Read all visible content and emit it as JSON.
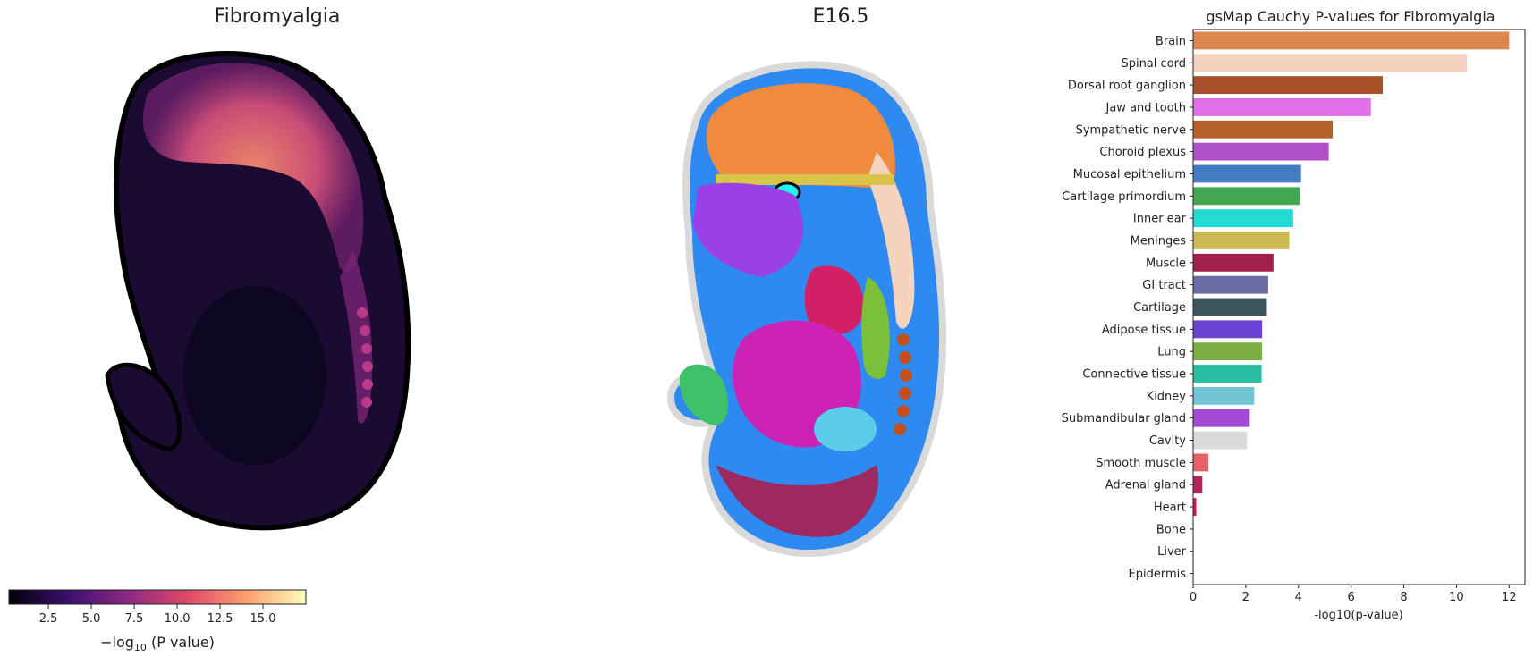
{
  "panels": {
    "left_title": "Fibromyalgia",
    "middle_title": "E16.5"
  },
  "colorbar": {
    "label_prefix": "−log",
    "label_sub": "10",
    "label_suffix": " (P value)",
    "ticks": [
      "2.5",
      "5.0",
      "7.5",
      "10.0",
      "12.5",
      "15.0"
    ],
    "tick_values": [
      2.5,
      5.0,
      7.5,
      10.0,
      12.5,
      15.0
    ],
    "range": [
      0.2,
      17.5
    ],
    "colormap": "magma",
    "colors": [
      "#000004",
      "#3b0f70",
      "#8c2981",
      "#de4968",
      "#fe9f6d",
      "#fcfdbf"
    ]
  },
  "chart_data": {
    "type": "bar",
    "orientation": "horizontal",
    "title": "gsMap Cauchy P-values for Fibromyalgia",
    "xlabel": "-log10(p-value)",
    "ylabel": "",
    "xlim": [
      0,
      12.6
    ],
    "xticks": [
      0,
      2,
      4,
      6,
      8,
      10,
      12
    ],
    "categories": [
      "Brain",
      "Spinal cord",
      "Dorsal root ganglion",
      "Jaw and tooth",
      "Sympathetic nerve",
      "Choroid plexus",
      "Mucosal epithelium",
      "Cartilage primordium",
      "Inner ear",
      "Meninges",
      "Muscle",
      "GI tract",
      "Cartilage",
      "Adipose tissue",
      "Lung",
      "Connective tissue",
      "Kidney",
      "Submandibular gland",
      "Cavity",
      "Smooth muscle",
      "Adrenal gland",
      "Heart",
      "Bone",
      "Liver",
      "Epidermis"
    ],
    "values": [
      12.0,
      10.4,
      7.2,
      6.75,
      5.3,
      5.15,
      4.1,
      4.05,
      3.8,
      3.65,
      3.05,
      2.85,
      2.8,
      2.62,
      2.62,
      2.6,
      2.32,
      2.15,
      2.05,
      0.58,
      0.35,
      0.12,
      0,
      0,
      0
    ],
    "colors": [
      "#dc8650",
      "#f5d2be",
      "#a9512a",
      "#e06fe7",
      "#b5602a",
      "#b152cc",
      "#447bc2",
      "#44a853",
      "#22dbd3",
      "#cdb954",
      "#a0204a",
      "#6a6aa4",
      "#3b545e",
      "#6a41d1",
      "#7cb044",
      "#26bfa1",
      "#72c3d4",
      "#a44ad4",
      "#dbdadb",
      "#e96168",
      "#b8205e",
      "#c81b5c",
      "#777777",
      "#777777",
      "#777777"
    ]
  }
}
